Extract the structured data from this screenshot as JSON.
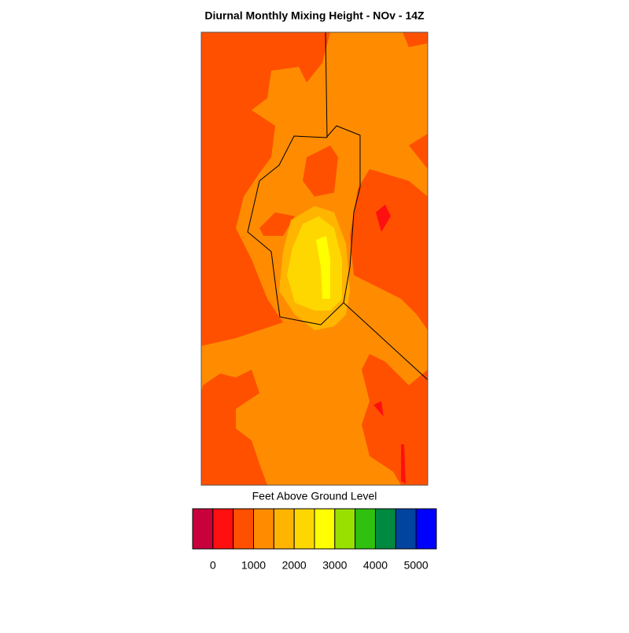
{
  "chart_data": {
    "type": "contour",
    "title": "Diurnal Monthly Mixing Height - NOv - 14Z",
    "colorbar_label": "Feet Above Ground Level",
    "colors": [
      "#c8003c",
      "#ff1010",
      "#ff5000",
      "#ff8c00",
      "#ffb400",
      "#ffd700",
      "#ffff00",
      "#99e000",
      "#30c010",
      "#008a40",
      "#0044a0",
      "#0000ff"
    ],
    "clim": [
      -500,
      5500
    ],
    "cticks": [
      0,
      1000,
      2000,
      3000,
      4000,
      5000
    ]
  }
}
